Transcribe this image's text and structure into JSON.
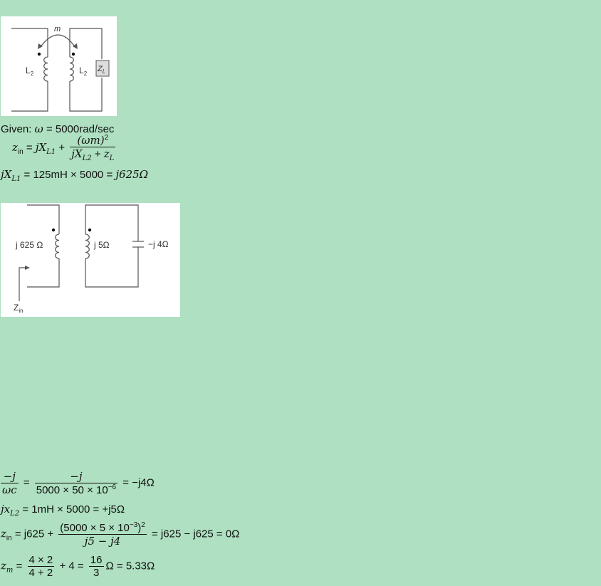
{
  "figure1": {
    "m_label": "m",
    "l_left_label": "L",
    "l_left_sub": "2",
    "l_right_label": "L",
    "l_right_sub": "2",
    "load_label": "Z",
    "load_sub": "L"
  },
  "given": {
    "label": "Given:",
    "omega": "ω",
    "value": "= 5000rad/sec"
  },
  "eq1": {
    "lhs": "z",
    "lhs_sub": "in",
    "eq": "=",
    "term1": "jX",
    "term1_sub": "L1",
    "plus": "+",
    "num": "(ωm)",
    "num_sup": "2",
    "den_a": "jX",
    "den_a_sub": "L2",
    "den_plus": "+",
    "den_b": "z",
    "den_b_sub": "L"
  },
  "eq2": {
    "lhs": "jX",
    "lhs_sub": "L1",
    "rhs": "= 125mH × 5000 =",
    "result": "j625Ω"
  },
  "figure2": {
    "left_label": "j 625 Ω",
    "mid_label": "j 5Ω",
    "cap_label": "−j 4Ω",
    "zin_label": "Z",
    "zin_sub": "in"
  },
  "eq3": {
    "num_lhs": "−j",
    "den_lhs": "ωc",
    "eq": "=",
    "num": "−j",
    "den": "5000 × 50 × 10",
    "den_sup": "−6",
    "rhs": "= −j4Ω"
  },
  "eq4": {
    "lhs": "jx",
    "lhs_sub": "L2",
    "rhs": "= 1mH × 5000 = +j5Ω"
  },
  "eq5": {
    "lhs": "z",
    "lhs_sub": "in",
    "eq": "= j625 +",
    "num": "(5000 × 5 × 10",
    "num_sup": "−3",
    "num_close": ")",
    "num_outer_sup": "2",
    "den": "j5 − j4",
    "rhs": "= j625 − j625 = 0Ω"
  },
  "eq6": {
    "lhs": "z",
    "lhs_sub": "m",
    "eq": "=",
    "num": "4 × 2",
    "den": "4 + 2",
    "plus": "+ 4 =",
    "num2": "16",
    "den2": "3",
    "rhs": "Ω = 5.33Ω"
  }
}
